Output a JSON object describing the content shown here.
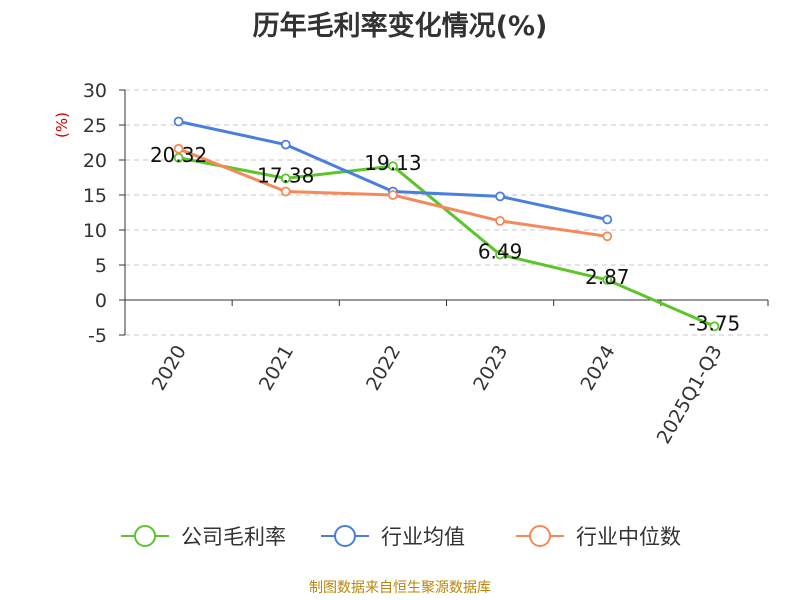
{
  "chart_data": {
    "type": "line",
    "title": "历年毛利率变化情况(%)",
    "ylabel": "(%)",
    "xlabel": "",
    "categories": [
      "2020",
      "2021",
      "2022",
      "2023",
      "2024",
      "2025Q1-Q3"
    ],
    "ylim": [
      -5,
      30
    ],
    "yticks": [
      30,
      25,
      20,
      15,
      10,
      5,
      0,
      -5
    ],
    "grid": true,
    "legend_position": "bottom",
    "series": [
      {
        "name": "公司毛利率",
        "color": "#5cc42c",
        "values": [
          20.32,
          17.38,
          19.13,
          6.49,
          2.87,
          -3.75
        ],
        "labels": [
          "20.32",
          "17.38",
          "19.13",
          "6.49",
          "2.87",
          "-3.75"
        ]
      },
      {
        "name": "行业均值",
        "color": "#4a7fdc",
        "values": [
          25.5,
          22.2,
          15.5,
          14.8,
          11.5,
          null
        ]
      },
      {
        "name": "行业中位数",
        "color": "#f5895a",
        "values": [
          21.6,
          15.5,
          15.0,
          11.3,
          9.1,
          null
        ]
      }
    ]
  },
  "footer": {
    "source": "制图数据来自恒生聚源数据库"
  }
}
